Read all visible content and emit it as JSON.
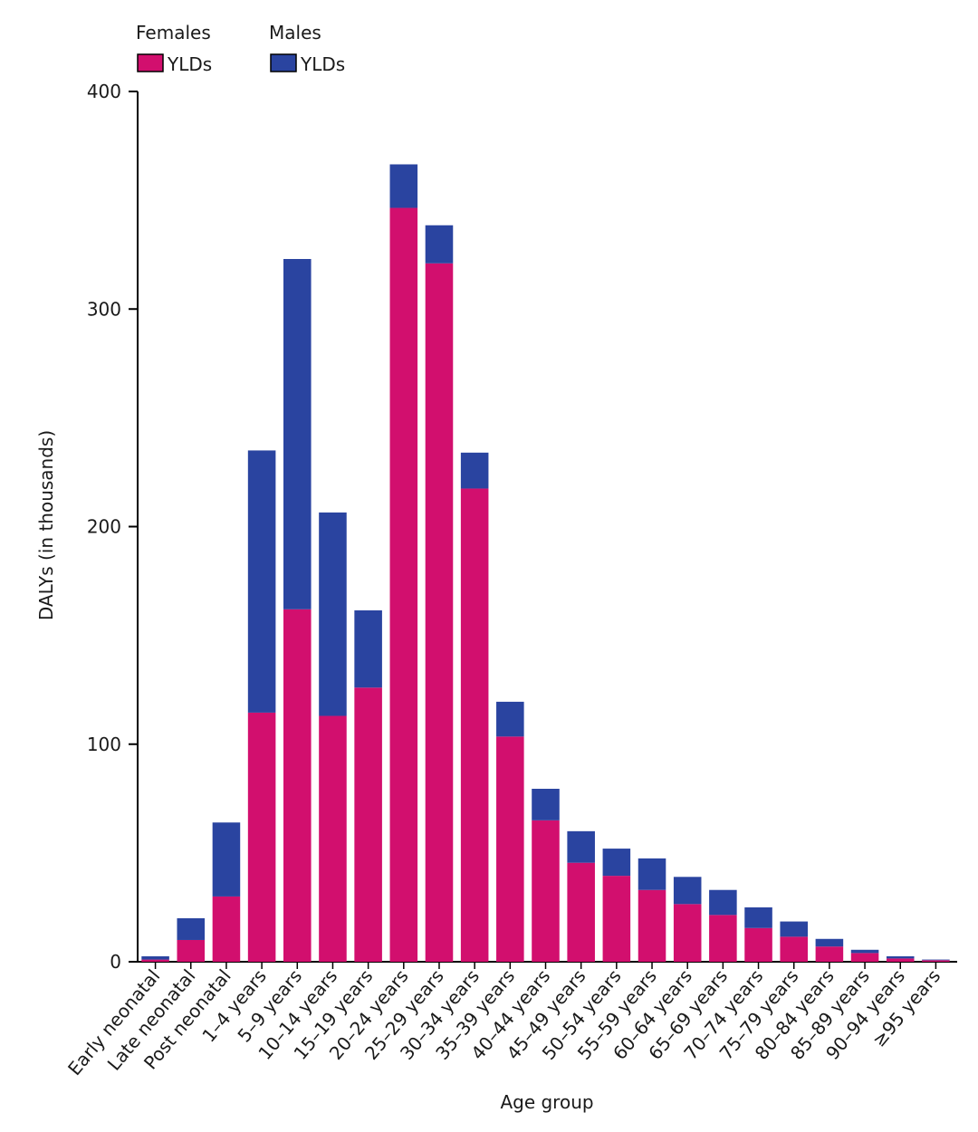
{
  "chart_data": {
    "type": "stacked_bar",
    "x_label": "Age group",
    "y_label": "DALYs (in thousands)",
    "categories": [
      "Early neonatal",
      "Late neonatal",
      "Post neonatal",
      "1–4 years",
      "5–9 years",
      "10–14 years",
      "15–19 years",
      "20–24 years",
      "25–29 years",
      "30–34 years",
      "35–39 years",
      "40–44 years",
      "45–49 years",
      "50–54 years",
      "55–59 years",
      "60–64 years",
      "65–69 years",
      "70–74 years",
      "75–79 years",
      "80–84 years",
      "85–89 years",
      "90–94 years",
      "≥95 years"
    ],
    "series": [
      {
        "group": "Females",
        "name": "YLDs",
        "color": "#d20f6e",
        "values": [
          1,
          10,
          30,
          114.5,
          162,
          113,
          126,
          346.5,
          321,
          217.5,
          103.5,
          65,
          45.5,
          39.5,
          33,
          26.5,
          21.5,
          15.5,
          11.5,
          7,
          4,
          1.5,
          0.7
        ]
      },
      {
        "group": "Males",
        "name": "YLDs",
        "color": "#2a44a0",
        "values": [
          1.5,
          10,
          34,
          120.5,
          161,
          93.5,
          35.5,
          20,
          17.5,
          16.5,
          16,
          14.5,
          14.5,
          12.5,
          14.5,
          12.5,
          11.5,
          9.5,
          7,
          3.5,
          1.5,
          1,
          0.3
        ]
      }
    ],
    "ylim": [
      0,
      400
    ],
    "yticks": [
      0,
      100,
      200,
      300,
      400
    ]
  }
}
